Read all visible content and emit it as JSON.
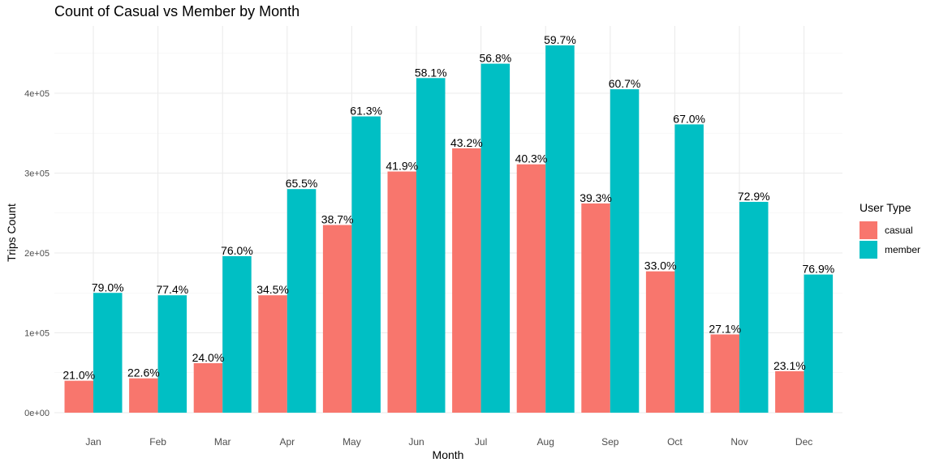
{
  "chart_data": {
    "type": "bar",
    "title": "Count of Casual vs Member by Month",
    "xlabel": "Month",
    "ylabel": "Trips Count",
    "categories": [
      "Jan",
      "Feb",
      "Mar",
      "Apr",
      "May",
      "Jun",
      "Jul",
      "Aug",
      "Sep",
      "Oct",
      "Nov",
      "Dec"
    ],
    "ylim": [
      0,
      460000
    ],
    "yticks": [
      0,
      100000,
      200000,
      300000,
      400000
    ],
    "ytick_labels": [
      "0e+00",
      "1e+05",
      "2e+05",
      "3e+05",
      "4e+05"
    ],
    "grid": true,
    "legend": {
      "title": "User Type",
      "position": "right"
    },
    "series": [
      {
        "name": "casual",
        "color": "#F8766D",
        "values": [
          40000,
          43000,
          62000,
          147000,
          235000,
          302000,
          331000,
          311000,
          262000,
          177000,
          98000,
          52000
        ],
        "labels": [
          "21.0%",
          "22.6%",
          "24.0%",
          "34.5%",
          "38.7%",
          "41.9%",
          "43.2%",
          "40.3%",
          "39.3%",
          "33.0%",
          "27.1%",
          "23.1%"
        ]
      },
      {
        "name": "member",
        "color": "#00BFC4",
        "values": [
          150000,
          147000,
          196000,
          280000,
          371000,
          419000,
          437000,
          460000,
          405000,
          361000,
          264000,
          173000
        ],
        "labels": [
          "79.0%",
          "77.4%",
          "76.0%",
          "65.5%",
          "61.3%",
          "58.1%",
          "56.8%",
          "59.7%",
          "60.7%",
          "67.0%",
          "72.9%",
          "76.9%"
        ]
      }
    ]
  }
}
